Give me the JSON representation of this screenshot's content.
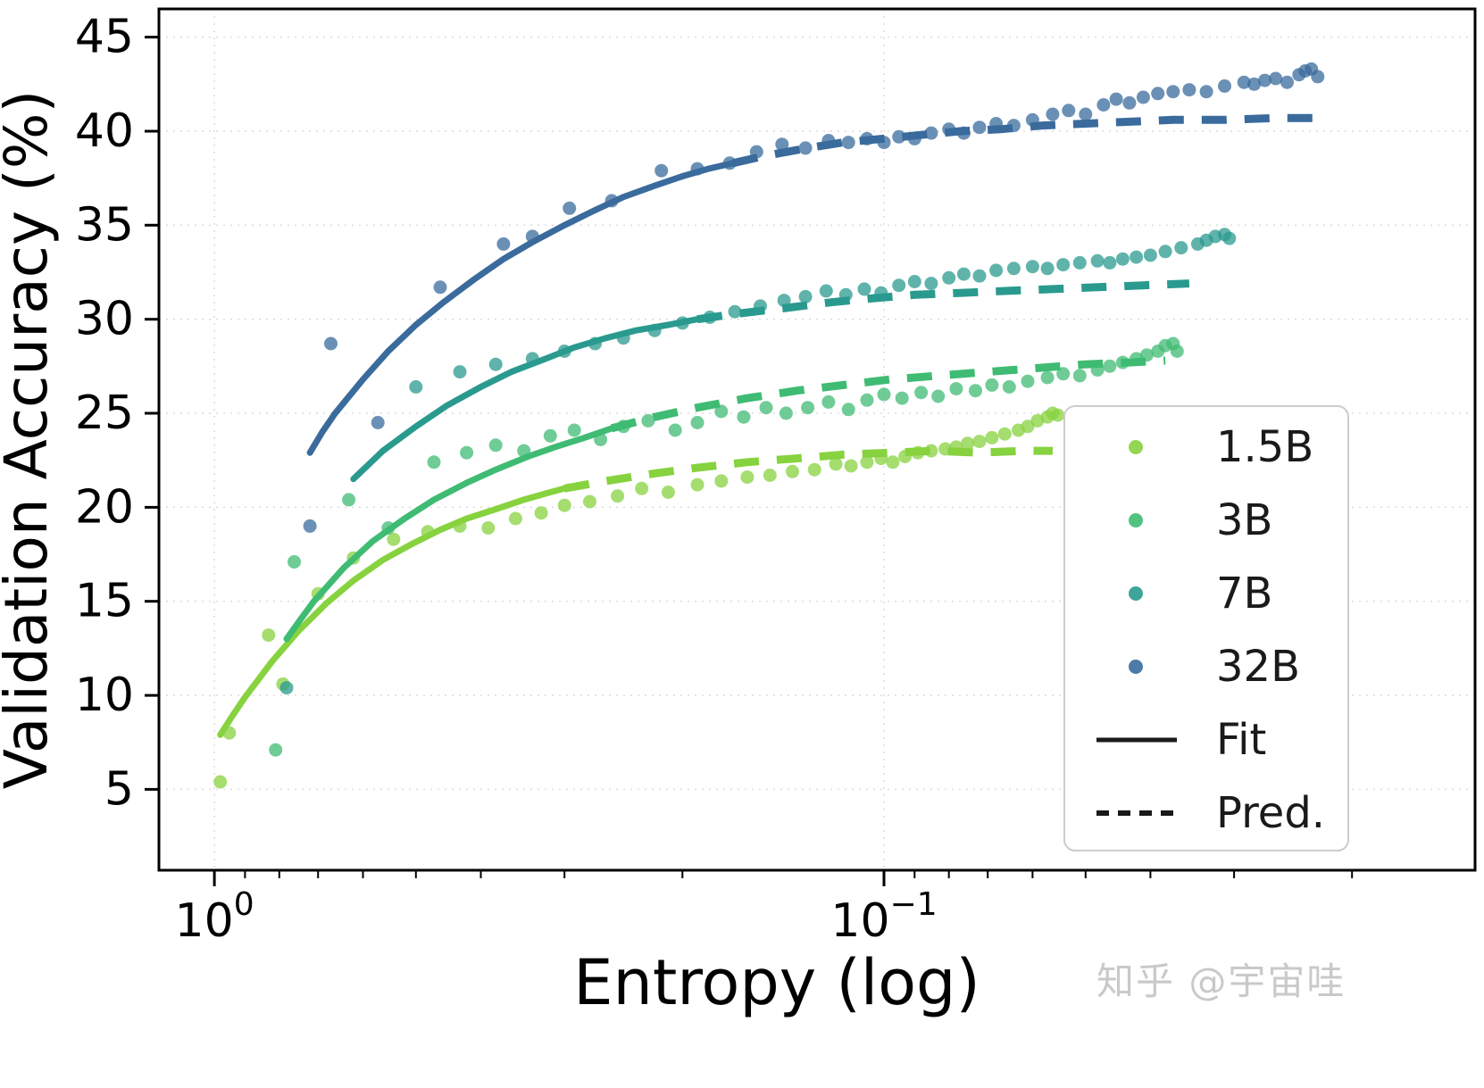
{
  "watermark": {
    "text": "知乎 @宇宙哇"
  },
  "chart_data": {
    "type": "scatter",
    "title": "",
    "xlabel": "Entropy (log)",
    "ylabel": "Validation Accuracy (%)",
    "axes": {
      "x_scale": "log",
      "x_reversed": true,
      "xlim": [
        1.21,
        0.0131
      ],
      "ylim": [
        0.7,
        46.5
      ],
      "y_ticks": [
        5,
        10,
        15,
        20,
        25,
        30,
        35,
        40,
        45
      ],
      "x_major_ticks": [
        {
          "value": 1,
          "base": "10",
          "exp": "0"
        },
        {
          "value": 0.1,
          "base": "10",
          "exp": "−1"
        }
      ],
      "grid": true
    },
    "legend": {
      "position": "lower right",
      "entries": [
        {
          "label": "1.5B",
          "marker": "dot",
          "color": "#87d23f"
        },
        {
          "label": "3B",
          "marker": "dot",
          "color": "#3fbb73"
        },
        {
          "label": "7B",
          "marker": "dot",
          "color": "#2a9a8f"
        },
        {
          "label": "32B",
          "marker": "dot",
          "color": "#3a6b9c"
        },
        {
          "label": "Fit",
          "marker": "line-solid",
          "color": "#1a1a1a"
        },
        {
          "label": "Pred.",
          "marker": "line-dashed",
          "color": "#1a1a1a"
        }
      ]
    },
    "series": [
      {
        "name": "1.5B",
        "color": "#87d23f",
        "scatter": [
          [
            0.98,
            5.4
          ],
          [
            0.95,
            8.0
          ],
          [
            0.83,
            13.2
          ],
          [
            0.79,
            10.6
          ],
          [
            0.7,
            15.4
          ],
          [
            0.62,
            17.3
          ],
          [
            0.54,
            18.3
          ],
          [
            0.48,
            18.7
          ],
          [
            0.43,
            19.0
          ],
          [
            0.39,
            18.9
          ],
          [
            0.355,
            19.4
          ],
          [
            0.325,
            19.7
          ],
          [
            0.3,
            20.1
          ],
          [
            0.275,
            20.3
          ],
          [
            0.25,
            20.6
          ],
          [
            0.23,
            21.0
          ],
          [
            0.21,
            20.8
          ],
          [
            0.19,
            21.2
          ],
          [
            0.175,
            21.4
          ],
          [
            0.16,
            21.6
          ],
          [
            0.148,
            21.7
          ],
          [
            0.137,
            21.9
          ],
          [
            0.127,
            22.0
          ],
          [
            0.118,
            22.3
          ],
          [
            0.112,
            22.2
          ],
          [
            0.106,
            22.4
          ],
          [
            0.101,
            22.6
          ],
          [
            0.097,
            22.4
          ],
          [
            0.093,
            22.7
          ],
          [
            0.089,
            22.9
          ],
          [
            0.085,
            23.0
          ],
          [
            0.081,
            23.1
          ],
          [
            0.078,
            23.2
          ],
          [
            0.075,
            23.4
          ],
          [
            0.072,
            23.5
          ],
          [
            0.069,
            23.7
          ],
          [
            0.066,
            23.9
          ],
          [
            0.063,
            24.1
          ],
          [
            0.061,
            24.3
          ],
          [
            0.059,
            24.6
          ],
          [
            0.057,
            24.8
          ],
          [
            0.056,
            25.0
          ],
          [
            0.055,
            24.9
          ]
        ],
        "fit": [
          [
            0.98,
            7.9
          ],
          [
            0.94,
            8.9
          ],
          [
            0.9,
            9.9
          ],
          [
            0.82,
            11.8
          ],
          [
            0.75,
            13.4
          ],
          [
            0.68,
            14.9
          ],
          [
            0.62,
            16.1
          ],
          [
            0.56,
            17.2
          ],
          [
            0.51,
            18.0
          ],
          [
            0.46,
            18.8
          ],
          [
            0.42,
            19.4
          ],
          [
            0.38,
            19.9
          ],
          [
            0.345,
            20.4
          ],
          [
            0.315,
            20.8
          ],
          [
            0.3,
            21.0
          ]
        ],
        "pred": [
          [
            0.3,
            21.0
          ],
          [
            0.26,
            21.4
          ],
          [
            0.22,
            21.8
          ],
          [
            0.19,
            22.1
          ],
          [
            0.16,
            22.4
          ],
          [
            0.135,
            22.6
          ],
          [
            0.115,
            22.8
          ],
          [
            0.098,
            22.9
          ],
          [
            0.084,
            23.0
          ],
          [
            0.072,
            22.9
          ],
          [
            0.062,
            23.0
          ],
          [
            0.056,
            23.0
          ]
        ]
      },
      {
        "name": "3B",
        "color": "#3fbb73",
        "scatter": [
          [
            0.81,
            7.1
          ],
          [
            0.76,
            17.1
          ],
          [
            0.63,
            20.4
          ],
          [
            0.55,
            18.9
          ],
          [
            0.47,
            22.4
          ],
          [
            0.42,
            22.9
          ],
          [
            0.38,
            23.3
          ],
          [
            0.345,
            23.0
          ],
          [
            0.315,
            23.8
          ],
          [
            0.29,
            24.1
          ],
          [
            0.265,
            23.6
          ],
          [
            0.245,
            24.3
          ],
          [
            0.225,
            24.6
          ],
          [
            0.205,
            24.1
          ],
          [
            0.19,
            24.5
          ],
          [
            0.175,
            25.1
          ],
          [
            0.162,
            24.8
          ],
          [
            0.15,
            25.3
          ],
          [
            0.14,
            25.0
          ],
          [
            0.13,
            25.3
          ],
          [
            0.121,
            25.6
          ],
          [
            0.113,
            25.2
          ],
          [
            0.106,
            25.7
          ],
          [
            0.1,
            26.0
          ],
          [
            0.094,
            25.8
          ],
          [
            0.088,
            26.1
          ],
          [
            0.083,
            25.9
          ],
          [
            0.078,
            26.3
          ],
          [
            0.073,
            26.2
          ],
          [
            0.069,
            26.5
          ],
          [
            0.065,
            26.4
          ],
          [
            0.061,
            26.7
          ],
          [
            0.057,
            26.9
          ],
          [
            0.054,
            27.1
          ],
          [
            0.051,
            27.0
          ],
          [
            0.048,
            27.3
          ],
          [
            0.046,
            27.5
          ],
          [
            0.044,
            27.7
          ],
          [
            0.042,
            27.9
          ],
          [
            0.0405,
            28.1
          ],
          [
            0.039,
            28.3
          ],
          [
            0.038,
            28.6
          ],
          [
            0.037,
            28.7
          ],
          [
            0.0365,
            28.3
          ]
        ],
        "fit": [
          [
            0.78,
            13.0
          ],
          [
            0.745,
            14.0
          ],
          [
            0.71,
            15.0
          ],
          [
            0.64,
            16.8
          ],
          [
            0.58,
            18.2
          ],
          [
            0.52,
            19.4
          ],
          [
            0.47,
            20.4
          ],
          [
            0.42,
            21.3
          ],
          [
            0.38,
            22.0
          ],
          [
            0.34,
            22.7
          ],
          [
            0.31,
            23.2
          ],
          [
            0.28,
            23.7
          ],
          [
            0.255,
            24.2
          ]
        ],
        "pred": [
          [
            0.255,
            24.2
          ],
          [
            0.22,
            24.8
          ],
          [
            0.19,
            25.3
          ],
          [
            0.16,
            25.8
          ],
          [
            0.135,
            26.2
          ],
          [
            0.115,
            26.5
          ],
          [
            0.098,
            26.8
          ],
          [
            0.083,
            27.0
          ],
          [
            0.07,
            27.2
          ],
          [
            0.059,
            27.4
          ],
          [
            0.05,
            27.6
          ],
          [
            0.043,
            27.7
          ],
          [
            0.038,
            27.8
          ]
        ]
      },
      {
        "name": "7B",
        "color": "#2a9a8f",
        "scatter": [
          [
            0.78,
            10.4
          ],
          [
            0.5,
            26.4
          ],
          [
            0.43,
            27.2
          ],
          [
            0.38,
            27.6
          ],
          [
            0.335,
            27.9
          ],
          [
            0.3,
            28.3
          ],
          [
            0.27,
            28.7
          ],
          [
            0.245,
            29.0
          ],
          [
            0.22,
            29.4
          ],
          [
            0.2,
            29.8
          ],
          [
            0.182,
            30.1
          ],
          [
            0.167,
            30.4
          ],
          [
            0.153,
            30.7
          ],
          [
            0.141,
            31.0
          ],
          [
            0.131,
            31.2
          ],
          [
            0.122,
            31.5
          ],
          [
            0.114,
            31.3
          ],
          [
            0.107,
            31.6
          ],
          [
            0.101,
            31.4
          ],
          [
            0.095,
            31.8
          ],
          [
            0.09,
            32.0
          ],
          [
            0.085,
            31.9
          ],
          [
            0.08,
            32.2
          ],
          [
            0.076,
            32.4
          ],
          [
            0.072,
            32.3
          ],
          [
            0.068,
            32.6
          ],
          [
            0.064,
            32.7
          ],
          [
            0.06,
            32.8
          ],
          [
            0.057,
            32.7
          ],
          [
            0.054,
            32.9
          ],
          [
            0.051,
            33.0
          ],
          [
            0.048,
            33.1
          ],
          [
            0.046,
            33.0
          ],
          [
            0.044,
            33.2
          ],
          [
            0.042,
            33.3
          ],
          [
            0.04,
            33.4
          ],
          [
            0.038,
            33.6
          ],
          [
            0.036,
            33.8
          ],
          [
            0.034,
            34.0
          ],
          [
            0.033,
            34.2
          ],
          [
            0.032,
            34.4
          ],
          [
            0.031,
            34.5
          ],
          [
            0.0305,
            34.3
          ]
        ],
        "fit": [
          [
            0.62,
            21.5
          ],
          [
            0.56,
            23.0
          ],
          [
            0.5,
            24.3
          ],
          [
            0.45,
            25.4
          ],
          [
            0.4,
            26.4
          ],
          [
            0.36,
            27.2
          ],
          [
            0.32,
            27.9
          ],
          [
            0.29,
            28.5
          ],
          [
            0.26,
            29.0
          ],
          [
            0.235,
            29.4
          ],
          [
            0.21,
            29.7
          ],
          [
            0.19,
            30.0
          ]
        ],
        "pred": [
          [
            0.19,
            30.0
          ],
          [
            0.165,
            30.3
          ],
          [
            0.14,
            30.6
          ],
          [
            0.12,
            30.9
          ],
          [
            0.105,
            31.1
          ],
          [
            0.09,
            31.3
          ],
          [
            0.077,
            31.4
          ],
          [
            0.066,
            31.5
          ],
          [
            0.056,
            31.6
          ],
          [
            0.048,
            31.7
          ],
          [
            0.041,
            31.8
          ],
          [
            0.035,
            31.9
          ]
        ]
      },
      {
        "name": "32B",
        "color": "#3a6b9c",
        "scatter": [
          [
            0.72,
            19.0
          ],
          [
            0.67,
            28.7
          ],
          [
            0.57,
            24.5
          ],
          [
            0.46,
            31.7
          ],
          [
            0.37,
            34.0
          ],
          [
            0.335,
            34.4
          ],
          [
            0.295,
            35.9
          ],
          [
            0.255,
            36.3
          ],
          [
            0.215,
            37.9
          ],
          [
            0.19,
            38.0
          ],
          [
            0.17,
            38.3
          ],
          [
            0.155,
            38.9
          ],
          [
            0.142,
            39.3
          ],
          [
            0.131,
            39.1
          ],
          [
            0.121,
            39.5
          ],
          [
            0.113,
            39.4
          ],
          [
            0.106,
            39.6
          ],
          [
            0.1,
            39.4
          ],
          [
            0.095,
            39.7
          ],
          [
            0.09,
            39.6
          ],
          [
            0.085,
            39.9
          ],
          [
            0.08,
            40.1
          ],
          [
            0.076,
            39.9
          ],
          [
            0.072,
            40.2
          ],
          [
            0.068,
            40.4
          ],
          [
            0.064,
            40.3
          ],
          [
            0.06,
            40.6
          ],
          [
            0.056,
            40.9
          ],
          [
            0.053,
            41.1
          ],
          [
            0.05,
            40.9
          ],
          [
            0.047,
            41.4
          ],
          [
            0.045,
            41.7
          ],
          [
            0.043,
            41.5
          ],
          [
            0.041,
            41.8
          ],
          [
            0.039,
            42.0
          ],
          [
            0.037,
            42.1
          ],
          [
            0.035,
            42.2
          ],
          [
            0.033,
            42.1
          ],
          [
            0.031,
            42.4
          ],
          [
            0.029,
            42.6
          ],
          [
            0.028,
            42.5
          ],
          [
            0.027,
            42.7
          ],
          [
            0.026,
            42.8
          ],
          [
            0.025,
            42.6
          ],
          [
            0.024,
            43.0
          ],
          [
            0.0235,
            43.2
          ],
          [
            0.023,
            43.3
          ],
          [
            0.0225,
            42.9
          ]
        ],
        "fit": [
          [
            0.72,
            22.9
          ],
          [
            0.69,
            24.0
          ],
          [
            0.66,
            25.0
          ],
          [
            0.6,
            26.8
          ],
          [
            0.55,
            28.3
          ],
          [
            0.5,
            29.7
          ],
          [
            0.455,
            30.9
          ],
          [
            0.41,
            32.1
          ],
          [
            0.37,
            33.2
          ],
          [
            0.335,
            34.1
          ],
          [
            0.3,
            35.0
          ],
          [
            0.27,
            35.8
          ],
          [
            0.245,
            36.5
          ],
          [
            0.22,
            37.1
          ],
          [
            0.2,
            37.6
          ],
          [
            0.183,
            38.0
          ],
          [
            0.168,
            38.3
          ]
        ],
        "pred": [
          [
            0.168,
            38.3
          ],
          [
            0.15,
            38.7
          ],
          [
            0.13,
            39.1
          ],
          [
            0.115,
            39.4
          ],
          [
            0.1,
            39.6
          ],
          [
            0.088,
            39.8
          ],
          [
            0.077,
            40.0
          ],
          [
            0.067,
            40.1
          ],
          [
            0.058,
            40.3
          ],
          [
            0.05,
            40.4
          ],
          [
            0.043,
            40.5
          ],
          [
            0.037,
            40.6
          ],
          [
            0.031,
            40.6
          ],
          [
            0.026,
            40.7
          ],
          [
            0.022,
            40.7
          ]
        ]
      }
    ]
  }
}
